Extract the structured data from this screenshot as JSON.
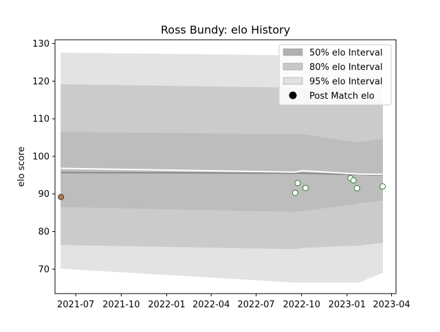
{
  "chart_data": {
    "type": "scatter",
    "title": "Ross Bundy: elo History",
    "xlabel": "",
    "ylabel": "elo score",
    "x_date_range": [
      "2021-05-20",
      "2023-04-10"
    ],
    "ylim": [
      63.5,
      131
    ],
    "grid": false,
    "legend_position": "top-right",
    "x_ticks": [
      {
        "date": "2021-07-01",
        "label": "2021-07"
      },
      {
        "date": "2021-10-01",
        "label": "2021-10"
      },
      {
        "date": "2022-01-01",
        "label": "2022-01"
      },
      {
        "date": "2022-04-01",
        "label": "2022-04"
      },
      {
        "date": "2022-07-01",
        "label": "2022-07"
      },
      {
        "date": "2022-10-01",
        "label": "2022-10"
      },
      {
        "date": "2023-01-01",
        "label": "2023-01"
      },
      {
        "date": "2023-04-01",
        "label": "2023-04"
      }
    ],
    "y_ticks": [
      {
        "value": 70,
        "label": "70"
      },
      {
        "value": 80,
        "label": "80"
      },
      {
        "value": 90,
        "label": "90"
      },
      {
        "value": 100,
        "label": "100"
      },
      {
        "value": 110,
        "label": "110"
      },
      {
        "value": 120,
        "label": "120"
      },
      {
        "value": 130,
        "label": "130"
      }
    ],
    "band_dates": [
      "2021-06-01",
      "2022-09-18",
      "2022-10-03",
      "2023-01-08",
      "2023-01-25",
      "2023-03-14"
    ],
    "series": [
      {
        "name": "95% elo Interval",
        "color": "#e3e3e3",
        "lower": [
          70.2,
          66.5,
          66.5,
          66.5,
          66.5,
          69.1
        ],
        "upper": [
          127.5,
          126.8,
          126.8,
          126.2,
          126.0,
          126.0
        ]
      },
      {
        "name": "80% elo Interval",
        "color": "#cbcbcb",
        "lower": [
          76.5,
          75.4,
          75.7,
          76.3,
          76.3,
          77.1
        ],
        "upper": [
          119.1,
          118.2,
          118.2,
          117.6,
          116.8,
          114.6
        ]
      },
      {
        "name": "50% elo Interval",
        "color": "#bdbdbd",
        "lower": [
          86.6,
          85.3,
          85.5,
          87.2,
          87.6,
          88.3
        ],
        "upper": [
          106.4,
          105.8,
          105.8,
          103.9,
          103.7,
          104.6
        ]
      },
      {
        "name": "median",
        "color": "#888888",
        "values": [
          95.7,
          95.5,
          95.5,
          95.2,
          95.2,
          95.0
        ]
      },
      {
        "name": "mean",
        "color": "#ffffff",
        "values": [
          96.8,
          95.8,
          96.2,
          95.4,
          95.3,
          95.2
        ]
      }
    ],
    "points": [
      {
        "date": "2021-06-01",
        "value": 89.2,
        "fill": "#b5784a",
        "edge": "#333333"
      },
      {
        "date": "2022-09-18",
        "value": 90.3,
        "fill": "#ffffff",
        "edge": "#2a7a2a"
      },
      {
        "date": "2022-09-23",
        "value": 92.9,
        "fill": "#ffffff",
        "edge": "#2a7a2a"
      },
      {
        "date": "2022-10-09",
        "value": 91.6,
        "fill": "#ffffff",
        "edge": "#2a7a2a"
      },
      {
        "date": "2023-01-08",
        "value": 94.2,
        "fill": "#ffffff",
        "edge": "#2a7a2a"
      },
      {
        "date": "2023-01-14",
        "value": 93.6,
        "fill": "#ffffff",
        "edge": "#2a7a2a"
      },
      {
        "date": "2023-01-21",
        "value": 91.5,
        "fill": "#ffffff",
        "edge": "#2a7a2a"
      },
      {
        "date": "2023-03-14",
        "value": 92.0,
        "fill": "#ffffff",
        "edge": "#2a7a2a"
      }
    ],
    "legend": [
      {
        "label": "50% elo Interval",
        "kind": "patch",
        "color": "#b0b0b0"
      },
      {
        "label": "80% elo Interval",
        "kind": "patch",
        "color": "#c8c8c8"
      },
      {
        "label": "95% elo Interval",
        "kind": "patch",
        "color": "#e0e0e0"
      },
      {
        "label": "Post Match elo",
        "kind": "dot",
        "color": "#000000"
      }
    ]
  }
}
